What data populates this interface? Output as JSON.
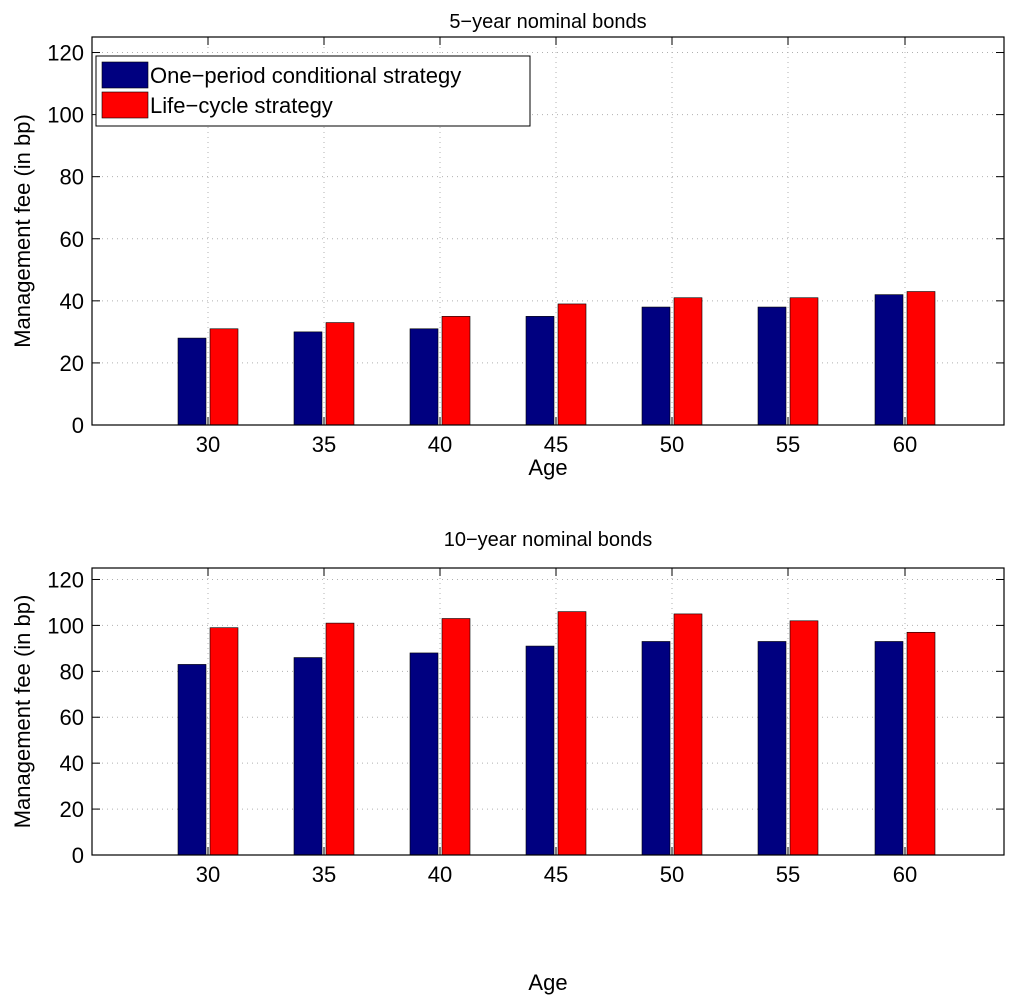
{
  "colors": {
    "series_one_period": "#000080",
    "series_life_cycle": "#ff0000"
  },
  "chart_data": [
    {
      "type": "bar",
      "title": "5−year nominal bonds",
      "xlabel": "Age",
      "ylabel": "Management fee (in bp)",
      "categories": [
        "30",
        "35",
        "40",
        "45",
        "50",
        "55",
        "60"
      ],
      "ylim": [
        0,
        125
      ],
      "yticks": [
        0,
        20,
        40,
        60,
        80,
        100,
        120
      ],
      "grid": true,
      "legend_placement": "top-left",
      "series": [
        {
          "name": "One−period conditional strategy",
          "values": [
            28,
            30,
            31,
            35,
            38,
            38,
            42
          ]
        },
        {
          "name": "Life−cycle strategy",
          "values": [
            31,
            33,
            35,
            39,
            41,
            41,
            43
          ]
        }
      ]
    },
    {
      "type": "bar",
      "title": "10−year nominal bonds",
      "xlabel": "Age",
      "ylabel": "Management fee (in bp)",
      "categories": [
        "30",
        "35",
        "40",
        "45",
        "50",
        "55",
        "60"
      ],
      "ylim": [
        0,
        125
      ],
      "yticks": [
        0,
        20,
        40,
        60,
        80,
        100,
        120
      ],
      "grid": true,
      "legend_placement": "none",
      "series": [
        {
          "values": [
            83,
            86,
            88,
            91,
            93,
            93,
            93
          ]
        },
        {
          "values": [
            99,
            101,
            103,
            106,
            105,
            102,
            97
          ]
        }
      ]
    }
  ]
}
